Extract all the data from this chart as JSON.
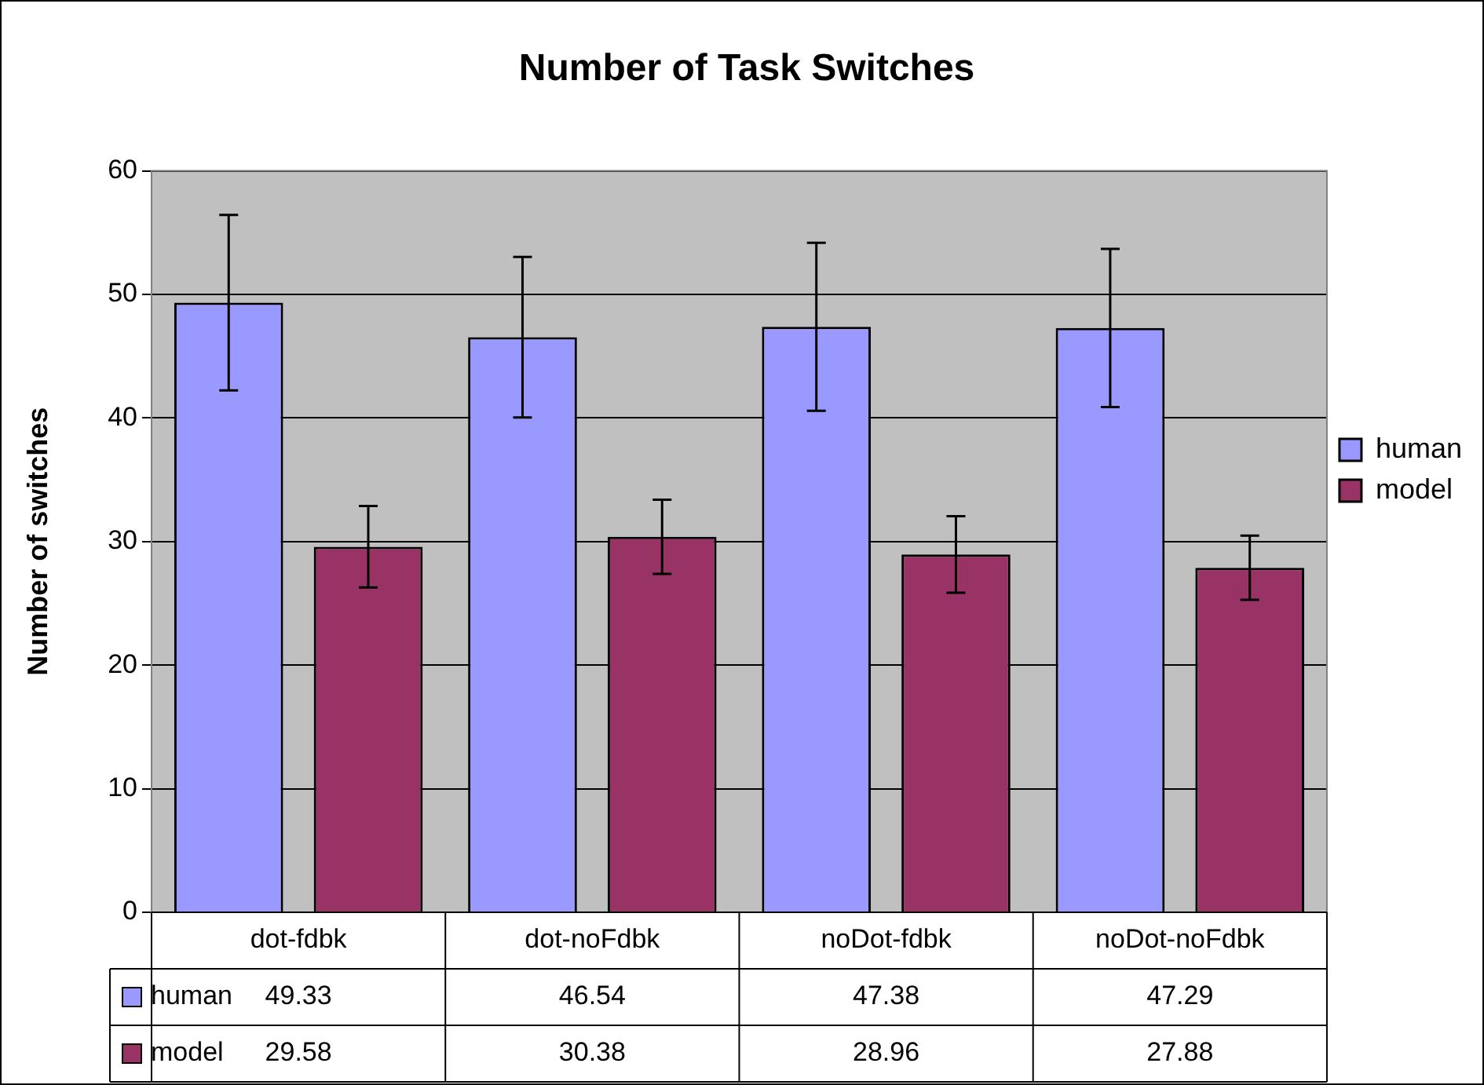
{
  "chart_data": {
    "type": "bar",
    "title": "Number of Task Switches",
    "ylabel": "Number of switches",
    "categories": [
      "dot-fdbk",
      "dot-noFdbk",
      "noDot-fdbk",
      "noDot-noFdbk"
    ],
    "series": [
      {
        "name": "human",
        "color": "#9999ff",
        "values": [
          49.33,
          46.54,
          47.38,
          47.29
        ],
        "errors": [
          7.1,
          6.5,
          6.8,
          6.4
        ]
      },
      {
        "name": "model",
        "color": "#993366",
        "values": [
          29.58,
          30.38,
          28.96,
          27.88
        ],
        "errors": [
          3.3,
          3.0,
          3.1,
          2.6
        ]
      }
    ],
    "ylim": [
      0,
      60
    ],
    "yticks": [
      0,
      10,
      20,
      30,
      40,
      50,
      60
    ],
    "grid": "y",
    "legend": "right",
    "data_labels": true
  }
}
